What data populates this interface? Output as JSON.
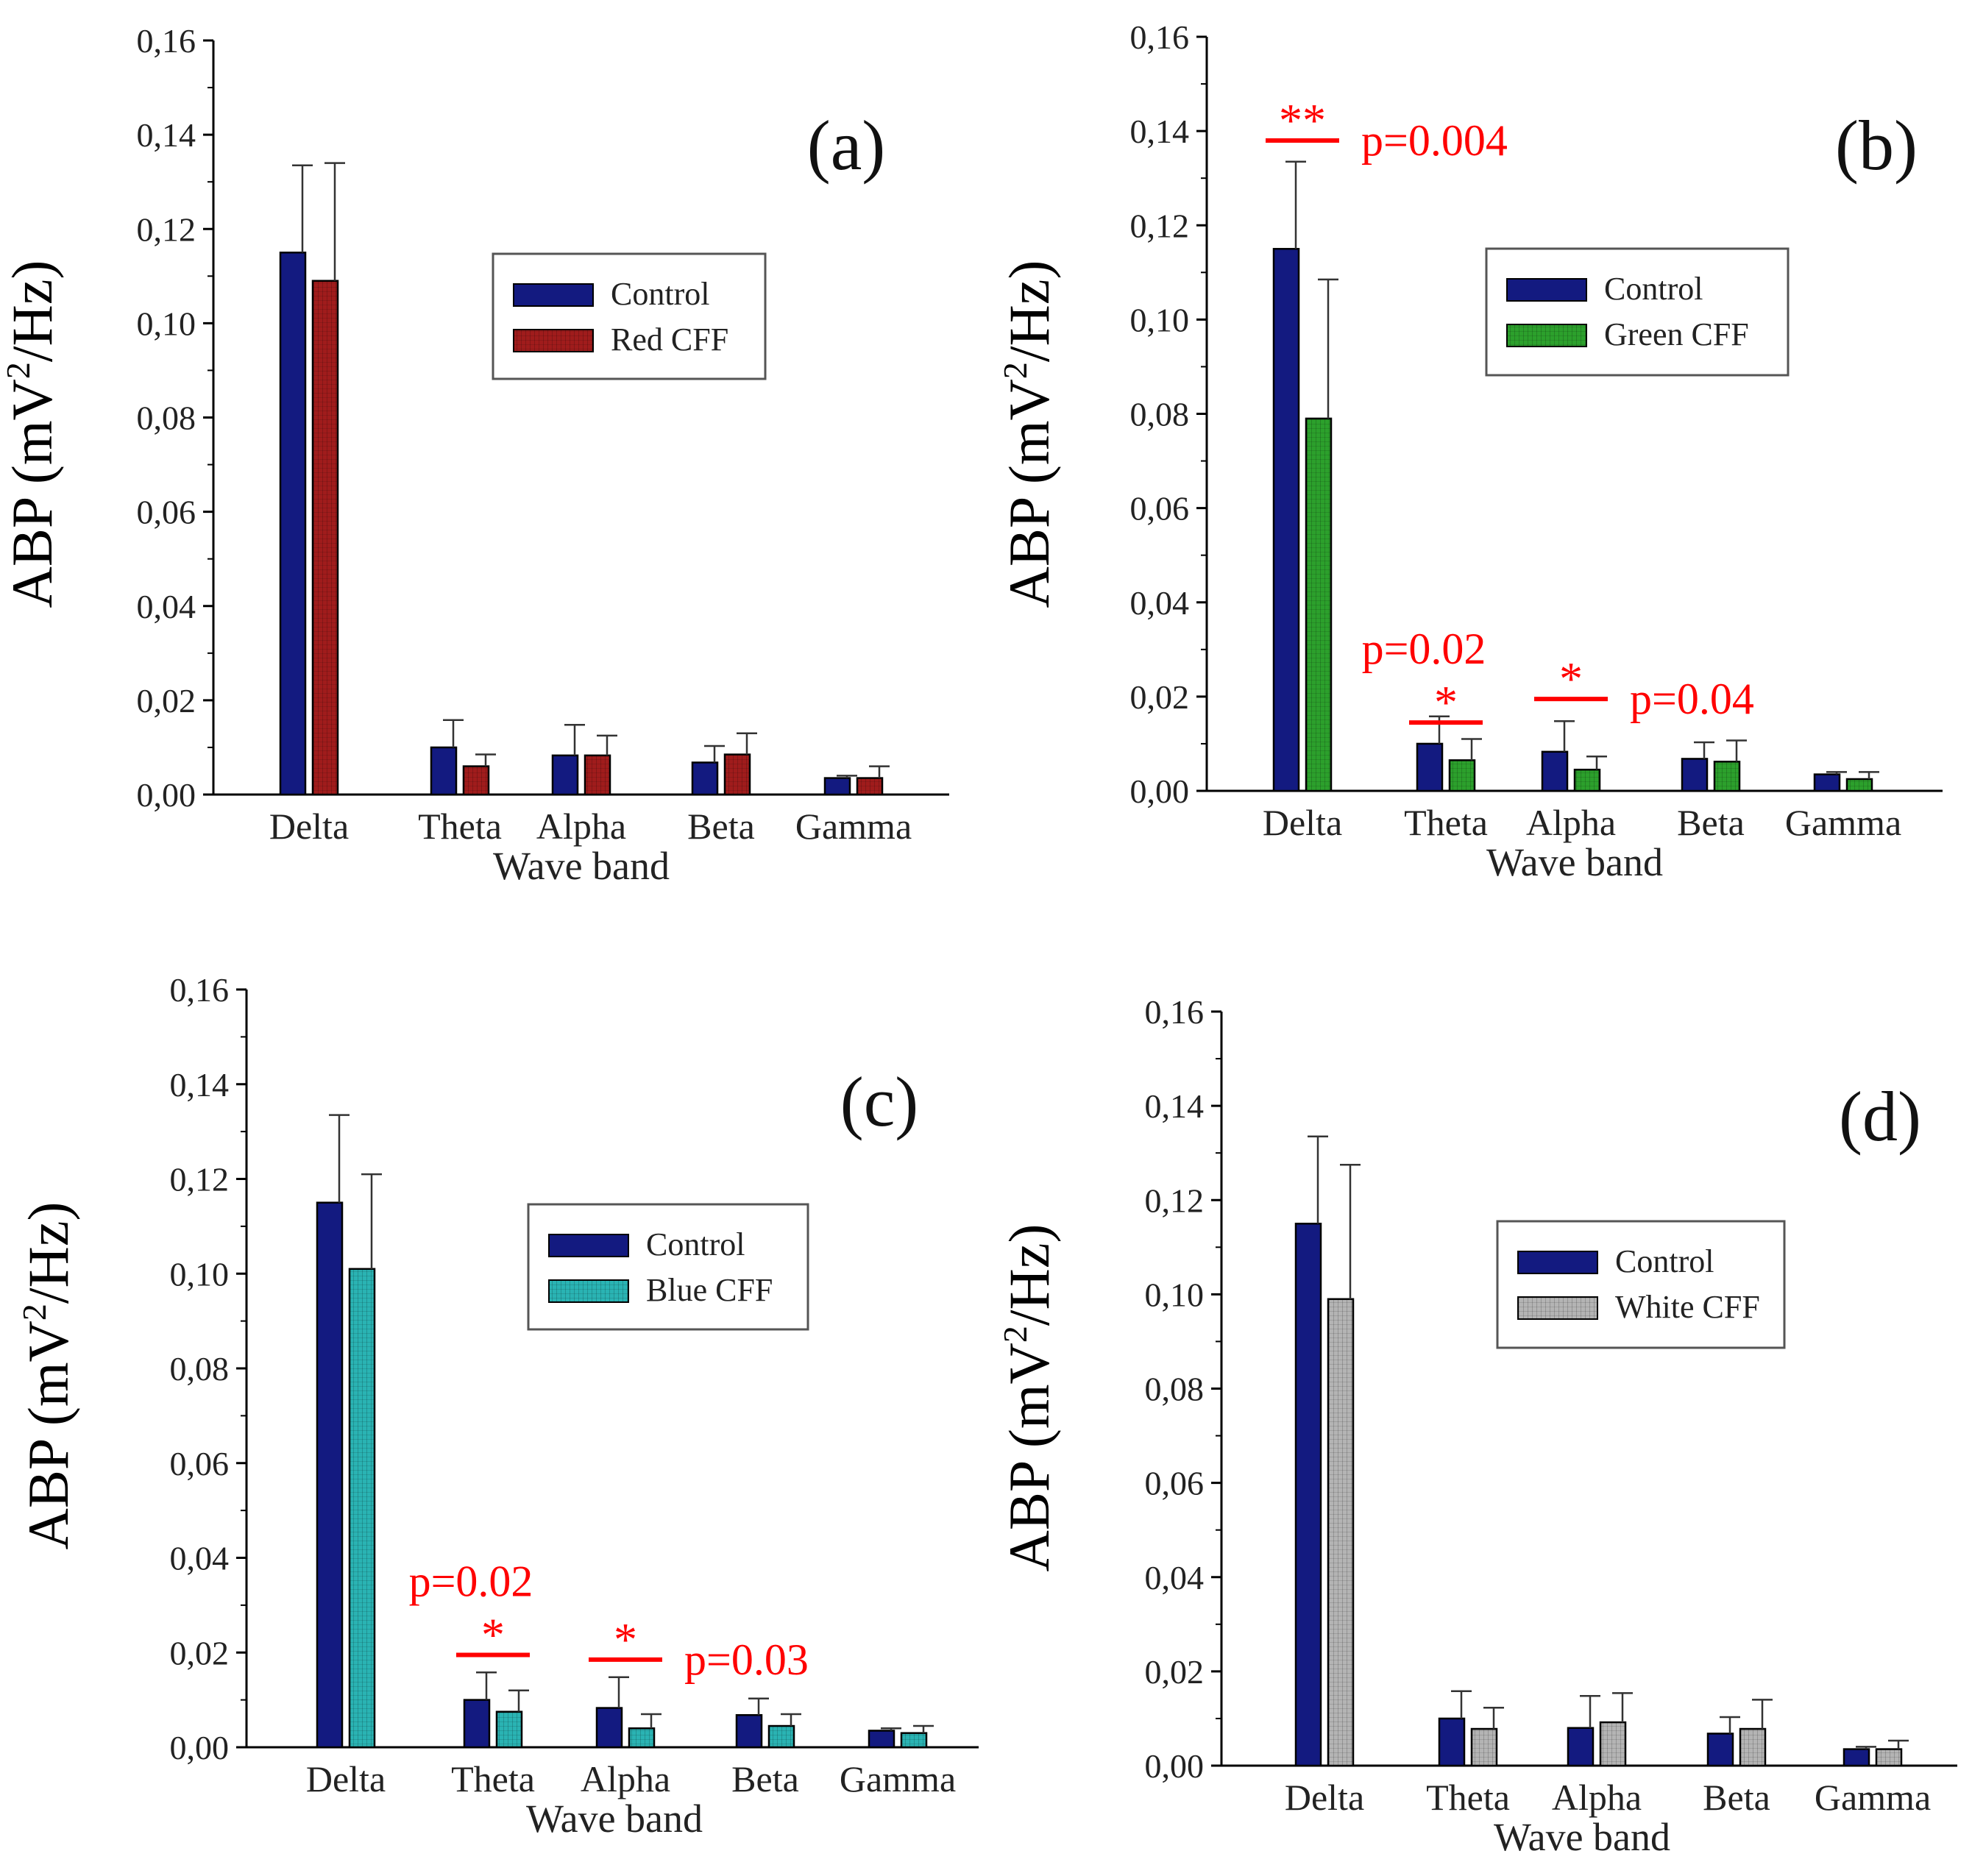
{
  "figure": {
    "ylabel_prefix": "ABP (mV",
    "ylabel_sup": "2",
    "ylabel_suffix": "/Hz)"
  },
  "colors": {
    "control": "#131a80",
    "red": "#a01c1c",
    "green": "#2ca02c",
    "blue": "#2ab3b3",
    "white": "#b4b4b4",
    "annotation": "#ff0000",
    "axis": "#000000"
  },
  "chart_data": [
    {
      "type": "bar",
      "panel_label": "(a)",
      "xlabel": "Wave band",
      "ylabel": "ABP (mV²/Hz)",
      "ylim": [
        0,
        0.16
      ],
      "yticks": [
        "0,00",
        "0,02",
        "0,04",
        "0,06",
        "0,08",
        "0,10",
        "0,12",
        "0,14",
        "0,16"
      ],
      "categories": [
        "Delta",
        "Theta",
        "Alpha",
        "Beta",
        "Gamma"
      ],
      "series": [
        {
          "name": "Control",
          "color_key": "control",
          "values": [
            0.115,
            0.01,
            0.0083,
            0.0068,
            0.0035
          ],
          "errors": [
            0.0185,
            0.0058,
            0.0065,
            0.0035,
            0.0005
          ]
        },
        {
          "name": "Red CFF",
          "color_key": "red",
          "values": [
            0.109,
            0.006,
            0.0083,
            0.0085,
            0.0035
          ],
          "errors": [
            0.025,
            0.0025,
            0.0042,
            0.0045,
            0.0025
          ]
        }
      ],
      "annotations": []
    },
    {
      "type": "bar",
      "panel_label": "(b)",
      "xlabel": "Wave band",
      "ylabel": "ABP (mV²/Hz)",
      "ylim": [
        0,
        0.16
      ],
      "yticks": [
        "0,00",
        "0,02",
        "0,04",
        "0,06",
        "0,08",
        "0,10",
        "0,12",
        "0,14",
        "0,16"
      ],
      "categories": [
        "Delta",
        "Theta",
        "Alpha",
        "Beta",
        "Gamma"
      ],
      "series": [
        {
          "name": "Control",
          "color_key": "control",
          "values": [
            0.115,
            0.01,
            0.0083,
            0.0068,
            0.0035
          ],
          "errors": [
            0.0185,
            0.0058,
            0.0065,
            0.0035,
            0.0005
          ]
        },
        {
          "name": "Green CFF",
          "color_key": "green",
          "values": [
            0.079,
            0.0065,
            0.0045,
            0.0062,
            0.0025
          ],
          "errors": [
            0.0295,
            0.0045,
            0.0028,
            0.0045,
            0.0015
          ]
        }
      ],
      "annotations": [
        {
          "category_index": 0,
          "stars": "**",
          "p_text": "p=0.004",
          "y": 0.138,
          "p_position": "right"
        },
        {
          "category_index": 1,
          "stars": "*",
          "p_text": "p=0.02",
          "y": 0.0145,
          "p_position": "above"
        },
        {
          "category_index": 2,
          "stars": "*",
          "p_text": "p=0.04",
          "y": 0.0195,
          "p_position": "right"
        }
      ]
    },
    {
      "type": "bar",
      "panel_label": "(c)",
      "xlabel": "Wave band",
      "ylabel": "ABP (mV²/Hz)",
      "ylim": [
        0,
        0.16
      ],
      "yticks": [
        "0,00",
        "0,02",
        "0,04",
        "0,06",
        "0,08",
        "0,10",
        "0,12",
        "0,14",
        "0,16"
      ],
      "categories": [
        "Delta",
        "Theta",
        "Alpha",
        "Beta",
        "Gamma"
      ],
      "series": [
        {
          "name": "Control",
          "color_key": "control",
          "values": [
            0.115,
            0.01,
            0.0083,
            0.0068,
            0.0035
          ],
          "errors": [
            0.0185,
            0.0058,
            0.0065,
            0.0035,
            0.0005
          ]
        },
        {
          "name": "Blue CFF",
          "color_key": "blue",
          "values": [
            0.101,
            0.0075,
            0.004,
            0.0045,
            0.003
          ],
          "errors": [
            0.02,
            0.0045,
            0.003,
            0.0025,
            0.0015
          ]
        }
      ],
      "annotations": [
        {
          "category_index": 1,
          "stars": "*",
          "p_text": "p=0.02",
          "y": 0.0195,
          "p_position": "above"
        },
        {
          "category_index": 2,
          "stars": "*",
          "p_text": "p=0.03",
          "y": 0.0185,
          "p_position": "right"
        }
      ]
    },
    {
      "type": "bar",
      "panel_label": "(d)",
      "xlabel": "Wave band",
      "ylabel": "ABP (mV²/Hz)",
      "ylim": [
        0,
        0.16
      ],
      "yticks": [
        "0,00",
        "0,02",
        "0,04",
        "0,06",
        "0,08",
        "0,10",
        "0,12",
        "0,14",
        "0,16"
      ],
      "categories": [
        "Delta",
        "Theta",
        "Alpha",
        "Beta",
        "Gamma"
      ],
      "series": [
        {
          "name": "Control",
          "color_key": "control",
          "values": [
            0.115,
            0.01,
            0.008,
            0.0068,
            0.0035
          ],
          "errors": [
            0.0185,
            0.0058,
            0.0068,
            0.0035,
            0.0005
          ]
        },
        {
          "name": "White CFF",
          "color_key": "white",
          "values": [
            0.099,
            0.0078,
            0.0092,
            0.0078,
            0.0035
          ],
          "errors": [
            0.0285,
            0.0045,
            0.0062,
            0.0062,
            0.0018
          ]
        }
      ],
      "annotations": []
    }
  ]
}
